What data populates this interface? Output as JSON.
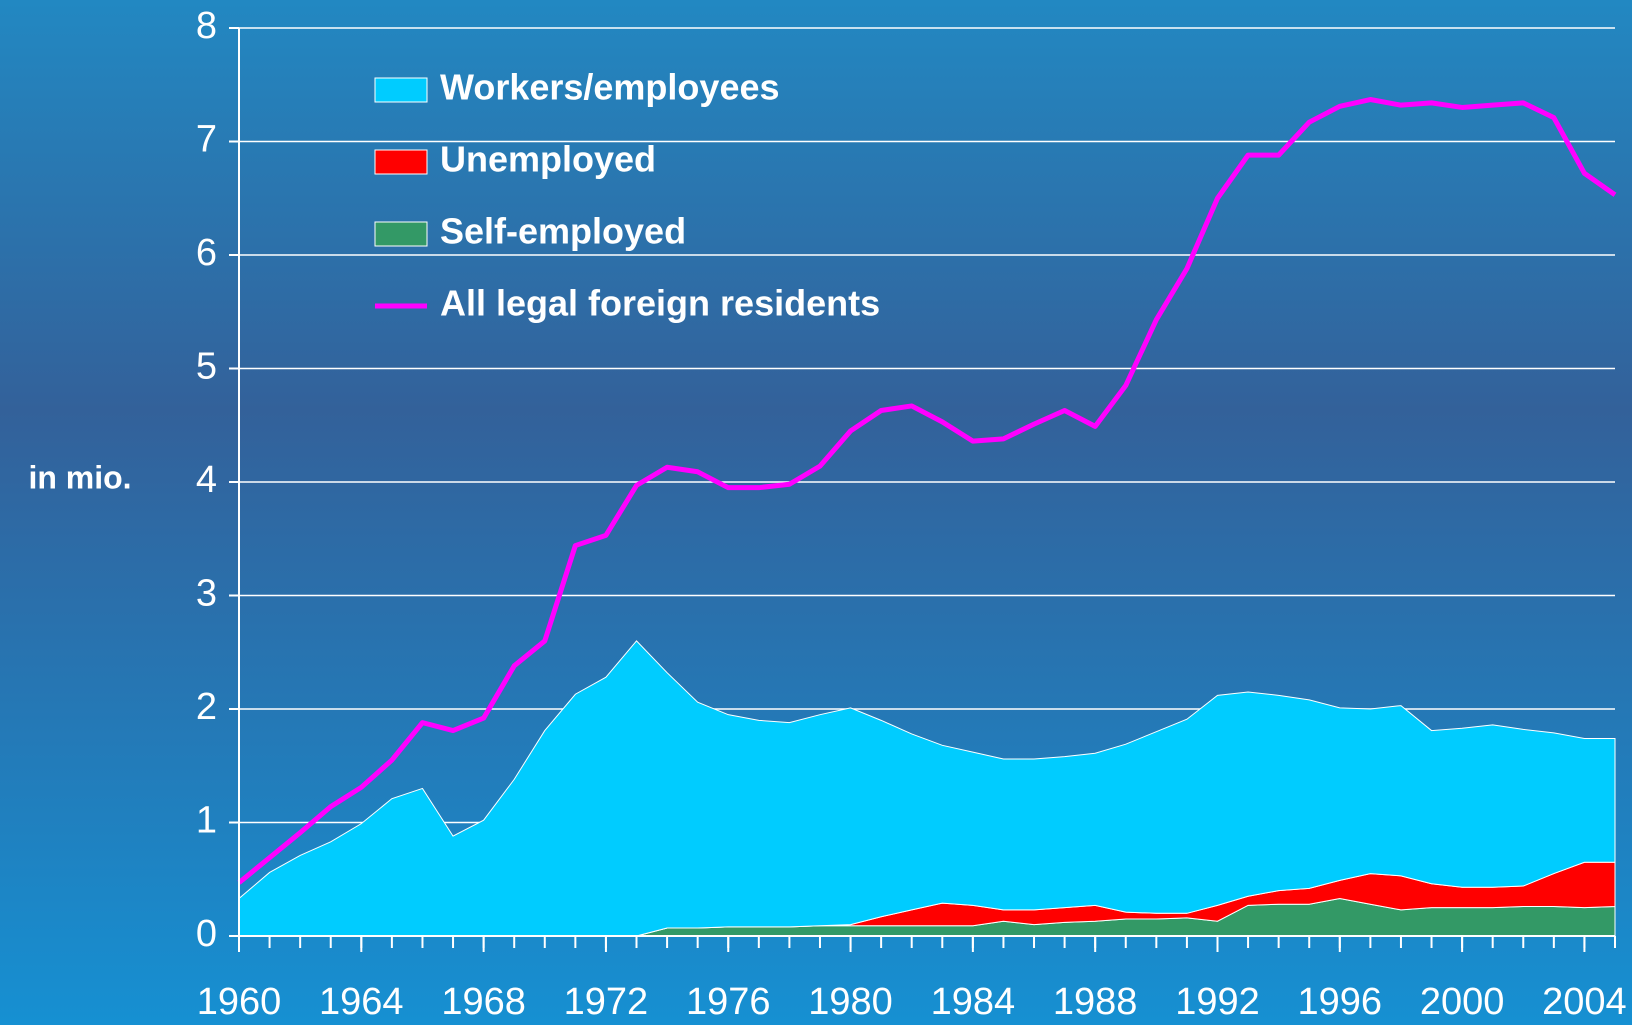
{
  "chart_data": {
    "type": "stacked-area-line",
    "y_label": "in mio.",
    "x": [
      1960,
      1961,
      1962,
      1963,
      1964,
      1965,
      1966,
      1967,
      1968,
      1969,
      1970,
      1971,
      1972,
      1973,
      1974,
      1975,
      1976,
      1977,
      1978,
      1979,
      1980,
      1981,
      1982,
      1983,
      1984,
      1985,
      1986,
      1987,
      1988,
      1989,
      1990,
      1991,
      1992,
      1993,
      1994,
      1995,
      1996,
      1997,
      1998,
      1999,
      2000,
      2001,
      2002,
      2003,
      2004,
      2005
    ],
    "series": [
      {
        "name": "Self-employed",
        "color": "#339966",
        "kind": "area",
        "values": [
          0,
          0,
          0,
          0,
          0,
          0,
          0,
          0,
          0,
          0,
          0,
          0,
          0,
          0,
          0.07,
          0.07,
          0.08,
          0.08,
          0.08,
          0.09,
          0.09,
          0.09,
          0.09,
          0.09,
          0.09,
          0.13,
          0.1,
          0.12,
          0.13,
          0.15,
          0.15,
          0.16,
          0.13,
          0.27,
          0.28,
          0.28,
          0.33,
          0.28,
          0.23,
          0.25,
          0.25,
          0.25,
          0.26,
          0.26,
          0.25,
          0.26
        ]
      },
      {
        "name": "Unemployed",
        "color": "#ff0000",
        "kind": "area",
        "values": [
          0,
          0,
          0,
          0,
          0,
          0,
          0,
          0,
          0,
          0,
          0,
          0,
          0,
          0,
          0,
          0,
          0,
          0,
          0,
          0,
          0.01,
          0.08,
          0.14,
          0.2,
          0.18,
          0.1,
          0.13,
          0.13,
          0.14,
          0.06,
          0.05,
          0.04,
          0.14,
          0.08,
          0.12,
          0.14,
          0.16,
          0.27,
          0.3,
          0.21,
          0.18,
          0.18,
          0.18,
          0.29,
          0.4,
          0.39
        ]
      },
      {
        "name": "Workers/employees",
        "color": "#00ccff",
        "kind": "area",
        "values": [
          0.33,
          0.56,
          0.71,
          0.83,
          0.99,
          1.21,
          1.3,
          0.88,
          1.02,
          1.38,
          1.81,
          2.13,
          2.28,
          2.6,
          2.25,
          1.99,
          1.87,
          1.82,
          1.8,
          1.86,
          1.91,
          1.73,
          1.55,
          1.39,
          1.35,
          1.33,
          1.33,
          1.33,
          1.34,
          1.48,
          1.6,
          1.71,
          1.85,
          1.8,
          1.72,
          1.66,
          1.52,
          1.45,
          1.5,
          1.35,
          1.4,
          1.43,
          1.38,
          1.24,
          1.09,
          1.09
        ]
      },
      {
        "name": "All legal foreign residents",
        "color": "#ff00ff",
        "kind": "line",
        "values": [
          0.47,
          0.69,
          0.91,
          1.14,
          1.31,
          1.55,
          1.88,
          1.81,
          1.92,
          2.38,
          2.6,
          3.44,
          3.53,
          3.97,
          4.13,
          4.09,
          3.95,
          3.95,
          3.98,
          4.14,
          4.45,
          4.63,
          4.67,
          4.53,
          4.36,
          4.38,
          4.51,
          4.63,
          4.49,
          4.85,
          5.43,
          5.88,
          6.5,
          6.88,
          6.88,
          7.17,
          7.31,
          7.37,
          7.32,
          7.34,
          7.3,
          7.32,
          7.34,
          7.21,
          6.72,
          6.53
        ]
      }
    ],
    "legend_order": [
      2,
      1,
      0,
      3
    ],
    "xlim": [
      1960,
      2005
    ],
    "xticks": [
      1960,
      1964,
      1968,
      1972,
      1976,
      1980,
      1984,
      1988,
      1992,
      1996,
      2000,
      2004
    ],
    "ylim": [
      0,
      8
    ],
    "yticks": [
      0,
      1,
      2,
      3,
      4,
      5,
      6,
      7,
      8
    ],
    "grid": true
  }
}
